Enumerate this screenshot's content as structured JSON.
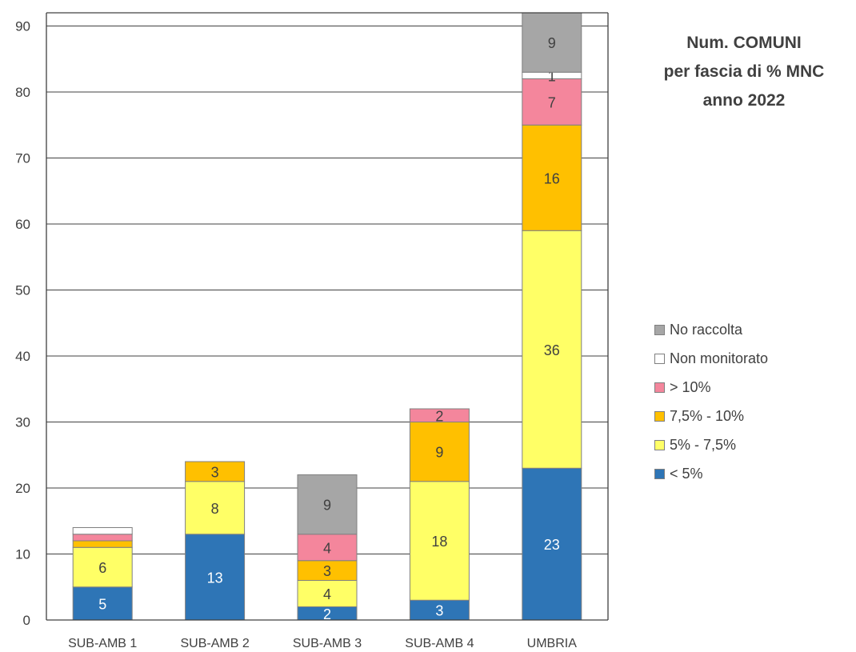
{
  "chart_data": {
    "type": "bar",
    "stacked": true,
    "title_lines": [
      "Num. COMUNI",
      "per fascia di % MNC",
      "anno 2022"
    ],
    "categories": [
      "SUB-AMB 1",
      "SUB-AMB 2",
      "SUB-AMB 3",
      "SUB-AMB 4",
      "UMBRIA"
    ],
    "ylim": [
      0,
      92
    ],
    "yticks": [
      "0",
      "10",
      "20",
      "30",
      "40",
      "50",
      "60",
      "70",
      "80",
      "90"
    ],
    "grid": true,
    "legend_position": "right",
    "series": [
      {
        "name": "< 5%",
        "color": "#2e75b6",
        "label_color": "#ffffff",
        "values": [
          5,
          13,
          2,
          3,
          23
        ],
        "labels": [
          "5",
          "13",
          "2",
          "3",
          "23"
        ]
      },
      {
        "name": "5% - 7,5%",
        "color": "#ffff66",
        "label_color": "#404040",
        "values": [
          6,
          8,
          4,
          18,
          36
        ],
        "labels": [
          "6",
          "8",
          "4",
          "18",
          "36"
        ]
      },
      {
        "name": "7,5% - 10%",
        "color": "#ffc000",
        "label_color": "#404040",
        "values": [
          1,
          3,
          3,
          9,
          16
        ],
        "labels": [
          "",
          "3",
          "3",
          "9",
          "16"
        ]
      },
      {
        "name": "> 10%",
        "color": "#f4869c",
        "label_color": "#404040",
        "values": [
          1,
          0,
          4,
          2,
          7
        ],
        "labels": [
          "",
          "",
          "4",
          "2",
          "7"
        ]
      },
      {
        "name": "Non monitorato",
        "color": "#ffffff",
        "label_color": "#404040",
        "values": [
          1,
          0,
          0,
          0,
          1
        ],
        "labels": [
          "",
          "",
          "",
          "",
          "1"
        ]
      },
      {
        "name": "No raccolta",
        "color": "#a6a6a6",
        "label_color": "#404040",
        "values": [
          0,
          0,
          9,
          0,
          9
        ],
        "labels": [
          "",
          "",
          "9",
          "",
          "9"
        ]
      }
    ]
  }
}
